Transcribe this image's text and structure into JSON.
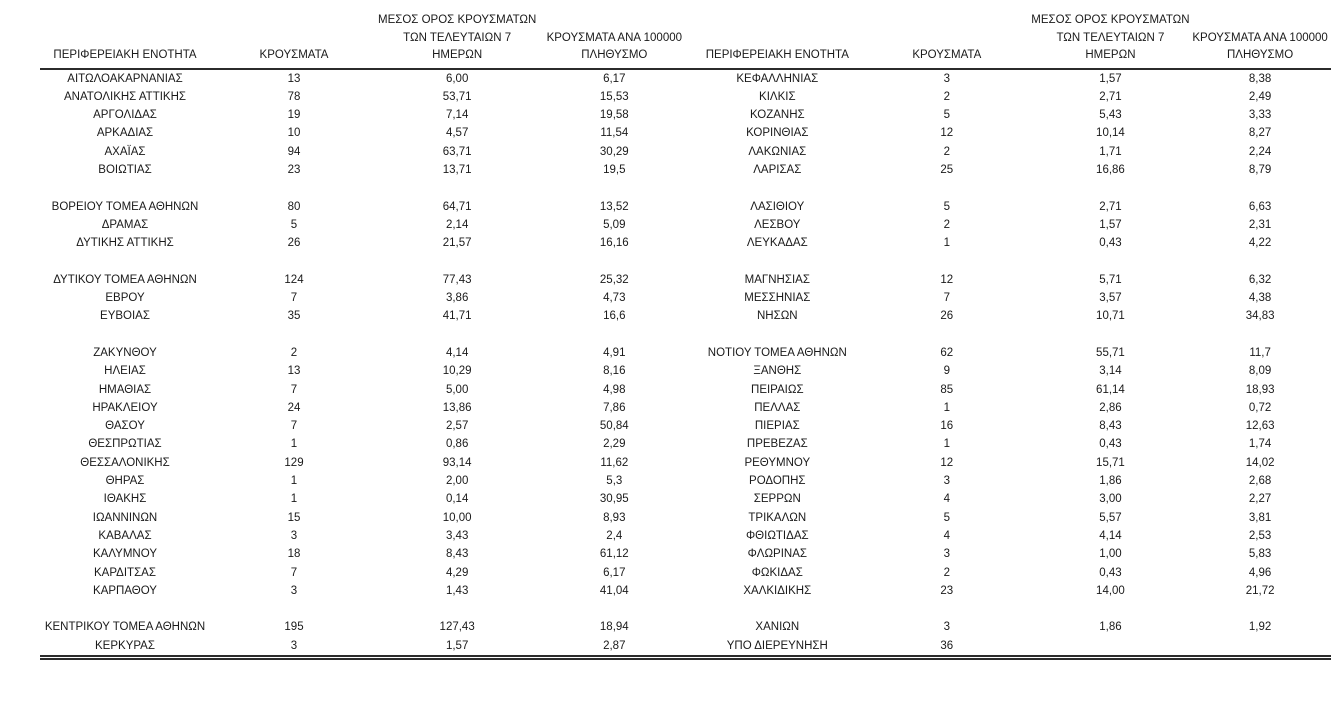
{
  "page": {
    "background": "#ffffff",
    "text_color": "#1a1a1a",
    "rule_color": "#2b2b2b"
  },
  "table": {
    "headers": {
      "region": "ΠΕΡΙΦΕΡΕΙΑΚΗ ΕΝΟΤΗΤΑ",
      "cases": "ΚΡΟΥΣΜΑΤΑ",
      "avg7_lines": [
        "ΜΕΣΟΣ ΟΡΟΣ ΚΡΟΥΣΜΑΤΩΝ",
        "ΤΩΝ ΤΕΛΕΥΤΑΙΩΝ 7",
        "ΗΜΕΡΩΝ"
      ],
      "per100k_lines": [
        "ΚΡΟΥΣΜΑΤΑ ΑΝΑ 100000",
        "ΠΛΗΘΥΣΜΟ"
      ]
    },
    "rows": [
      {
        "left": [
          "ΑΙΤΩΛΟΑΚΑΡΝΑΝΙΑΣ",
          "13",
          "6,00",
          "6,17"
        ],
        "right": [
          "ΚΕΦΑΛΛΗΝΙΑΣ",
          "3",
          "1,57",
          "8,38"
        ]
      },
      {
        "left": [
          "ΑΝΑΤΟΛΙΚΗΣ ΑΤΤΙΚΗΣ",
          "78",
          "53,71",
          "15,53"
        ],
        "right": [
          "ΚΙΛΚΙΣ",
          "2",
          "2,71",
          "2,49"
        ]
      },
      {
        "left": [
          "ΑΡΓΟΛΙΔΑΣ",
          "19",
          "7,14",
          "19,58"
        ],
        "right": [
          "ΚΟΖΑΝΗΣ",
          "5",
          "5,43",
          "3,33"
        ]
      },
      {
        "left": [
          "ΑΡΚΑΔΙΑΣ",
          "10",
          "4,57",
          "11,54"
        ],
        "right": [
          "ΚΟΡΙΝΘΙΑΣ",
          "12",
          "10,14",
          "8,27"
        ]
      },
      {
        "left": [
          "ΑΧΑΪΑΣ",
          "94",
          "63,71",
          "30,29"
        ],
        "right": [
          "ΛΑΚΩΝΙΑΣ",
          "2",
          "1,71",
          "2,24"
        ]
      },
      {
        "left": [
          "ΒΟΙΩΤΙΑΣ",
          "23",
          "13,71",
          "19,5"
        ],
        "right": [
          "ΛΑΡΙΣΑΣ",
          "25",
          "16,86",
          "8,79"
        ]
      },
      {
        "spacer": true
      },
      {
        "left": [
          "ΒΟΡΕΙΟΥ ΤΟΜΕΑ ΑΘΗΝΩΝ",
          "80",
          "64,71",
          "13,52"
        ],
        "right": [
          "ΛΑΣΙΘΙΟΥ",
          "5",
          "2,71",
          "6,63"
        ]
      },
      {
        "left": [
          "ΔΡΑΜΑΣ",
          "5",
          "2,14",
          "5,09"
        ],
        "right": [
          "ΛΕΣΒΟΥ",
          "2",
          "1,57",
          "2,31"
        ]
      },
      {
        "left": [
          "ΔΥΤΙΚΗΣ ΑΤΤΙΚΗΣ",
          "26",
          "21,57",
          "16,16"
        ],
        "right": [
          "ΛΕΥΚΑΔΑΣ",
          "1",
          "0,43",
          "4,22"
        ]
      },
      {
        "spacer": true
      },
      {
        "left": [
          "ΔΥΤΙΚΟΥ ΤΟΜΕΑ ΑΘΗΝΩΝ",
          "124",
          "77,43",
          "25,32"
        ],
        "right": [
          "ΜΑΓΝΗΣΙΑΣ",
          "12",
          "5,71",
          "6,32"
        ]
      },
      {
        "left": [
          "ΕΒΡΟΥ",
          "7",
          "3,86",
          "4,73"
        ],
        "right": [
          "ΜΕΣΣΗΝΙΑΣ",
          "7",
          "3,57",
          "4,38"
        ]
      },
      {
        "left": [
          "ΕΥΒΟΙΑΣ",
          "35",
          "41,71",
          "16,6"
        ],
        "right": [
          "ΝΗΣΩΝ",
          "26",
          "10,71",
          "34,83"
        ]
      },
      {
        "spacer": true
      },
      {
        "left": [
          "ΖΑΚΥΝΘΟΥ",
          "2",
          "4,14",
          "4,91"
        ],
        "right": [
          "ΝΟΤΙΟΥ ΤΟΜΕΑ ΑΘΗΝΩΝ",
          "62",
          "55,71",
          "11,7"
        ]
      },
      {
        "left": [
          "ΗΛΕΙΑΣ",
          "13",
          "10,29",
          "8,16"
        ],
        "right": [
          "ΞΑΝΘΗΣ",
          "9",
          "3,14",
          "8,09"
        ]
      },
      {
        "left": [
          "ΗΜΑΘΙΑΣ",
          "7",
          "5,00",
          "4,98"
        ],
        "right": [
          "ΠΕΙΡΑΙΩΣ",
          "85",
          "61,14",
          "18,93"
        ]
      },
      {
        "left": [
          "ΗΡΑΚΛΕΙΟΥ",
          "24",
          "13,86",
          "7,86"
        ],
        "right": [
          "ΠΕΛΛΑΣ",
          "1",
          "2,86",
          "0,72"
        ]
      },
      {
        "left": [
          "ΘΑΣΟΥ",
          "7",
          "2,57",
          "50,84"
        ],
        "right": [
          "ΠΙΕΡΙΑΣ",
          "16",
          "8,43",
          "12,63"
        ]
      },
      {
        "left": [
          "ΘΕΣΠΡΩΤΙΑΣ",
          "1",
          "0,86",
          "2,29"
        ],
        "right": [
          "ΠΡΕΒΕΖΑΣ",
          "1",
          "0,43",
          "1,74"
        ]
      },
      {
        "left": [
          "ΘΕΣΣΑΛΟΝΙΚΗΣ",
          "129",
          "93,14",
          "11,62"
        ],
        "right": [
          "ΡΕΘΥΜΝΟΥ",
          "12",
          "15,71",
          "14,02"
        ]
      },
      {
        "left": [
          "ΘΗΡΑΣ",
          "1",
          "2,00",
          "5,3"
        ],
        "right": [
          "ΡΟΔΟΠΗΣ",
          "3",
          "1,86",
          "2,68"
        ]
      },
      {
        "left": [
          "ΙΘΑΚΗΣ",
          "1",
          "0,14",
          "30,95"
        ],
        "right": [
          "ΣΕΡΡΩΝ",
          "4",
          "3,00",
          "2,27"
        ]
      },
      {
        "left": [
          "ΙΩΑΝΝΙΝΩΝ",
          "15",
          "10,00",
          "8,93"
        ],
        "right": [
          "ΤΡΙΚΑΛΩΝ",
          "5",
          "5,57",
          "3,81"
        ]
      },
      {
        "left": [
          "ΚΑΒΑΛΑΣ",
          "3",
          "3,43",
          "2,4"
        ],
        "right": [
          "ΦΘΙΩΤΙΔΑΣ",
          "4",
          "4,14",
          "2,53"
        ]
      },
      {
        "left": [
          "ΚΑΛΥΜΝΟΥ",
          "18",
          "8,43",
          "61,12"
        ],
        "right": [
          "ΦΛΩΡΙΝΑΣ",
          "3",
          "1,00",
          "5,83"
        ]
      },
      {
        "left": [
          "ΚΑΡΔΙΤΣΑΣ",
          "7",
          "4,29",
          "6,17"
        ],
        "right": [
          "ΦΩΚΙΔΑΣ",
          "2",
          "0,43",
          "4,96"
        ]
      },
      {
        "left": [
          "ΚΑΡΠΑΘΟΥ",
          "3",
          "1,43",
          "41,04"
        ],
        "right": [
          "ΧΑΛΚΙΔΙΚΗΣ",
          "23",
          "14,00",
          "21,72"
        ]
      },
      {
        "spacer": true
      },
      {
        "left": [
          "ΚΕΝΤΡΙΚΟΥ ΤΟΜΕΑ ΑΘΗΝΩΝ",
          "195",
          "127,43",
          "18,94"
        ],
        "right": [
          "ΧΑΝΙΩΝ",
          "3",
          "1,86",
          "1,92"
        ]
      },
      {
        "left": [
          "ΚΕΡΚΥΡΑΣ",
          "3",
          "1,57",
          "2,87"
        ],
        "right": [
          "ΥΠΟ ΔΙΕΡΕΥΝΗΣΗ",
          "36",
          "",
          ""
        ]
      }
    ]
  }
}
